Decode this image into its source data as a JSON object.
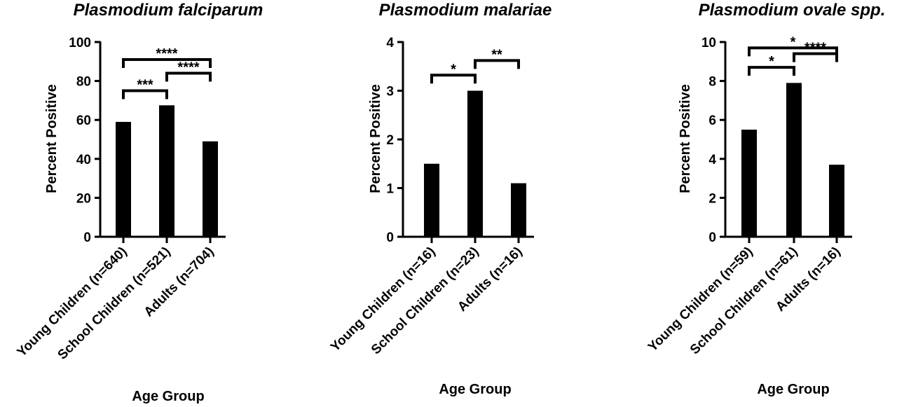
{
  "chart_data": [
    {
      "type": "bar",
      "title": "Plasmodium falciparum",
      "xlabel": "Age Group",
      "ylabel": "Percent Positive",
      "categories": [
        "Young Children (n=640)",
        "School Children (n=521)",
        "Adults (n=704)"
      ],
      "values": [
        59,
        67.5,
        49
      ],
      "ylim": [
        0,
        100
      ],
      "yticks": [
        "0",
        "20",
        "40",
        "60",
        "80",
        "100"
      ],
      "significance": [
        {
          "from": 0,
          "to": 1,
          "label": "***",
          "y": 75
        },
        {
          "from": 1,
          "to": 2,
          "label": "****",
          "y": 84
        },
        {
          "from": 0,
          "to": 2,
          "label": "****",
          "y": 91
        }
      ]
    },
    {
      "type": "bar",
      "title": "Plasmodium malariae",
      "xlabel": "Age Group",
      "ylabel": "Percent Positive",
      "categories": [
        "Young Children (n=16)",
        "School Children (n=23)",
        "Adults (n=16)"
      ],
      "values": [
        1.5,
        3.0,
        1.1
      ],
      "ylim": [
        0,
        4
      ],
      "yticks": [
        "0",
        "1",
        "2",
        "3",
        "4"
      ],
      "significance": [
        {
          "from": 0,
          "to": 1,
          "label": "*",
          "y": 3.32
        },
        {
          "from": 1,
          "to": 2,
          "label": "**",
          "y": 3.62
        }
      ]
    },
    {
      "type": "bar",
      "title": "Plasmodium ovale spp.",
      "xlabel": "Age Group",
      "ylabel": "Percent Positive",
      "categories": [
        "Young Children (n=59)",
        "School Children (n=61)",
        "Adults (n=16)"
      ],
      "values": [
        5.5,
        7.9,
        3.7
      ],
      "ylim": [
        0,
        10
      ],
      "yticks": [
        "0",
        "2",
        "4",
        "6",
        "8",
        "10"
      ],
      "significance": [
        {
          "from": 0,
          "to": 1,
          "label": "*",
          "y": 8.7
        },
        {
          "from": 1,
          "to": 2,
          "label": "****",
          "y": 9.4
        },
        {
          "from": 0,
          "to": 2,
          "label": "*",
          "y": 9.7
        }
      ]
    }
  ]
}
